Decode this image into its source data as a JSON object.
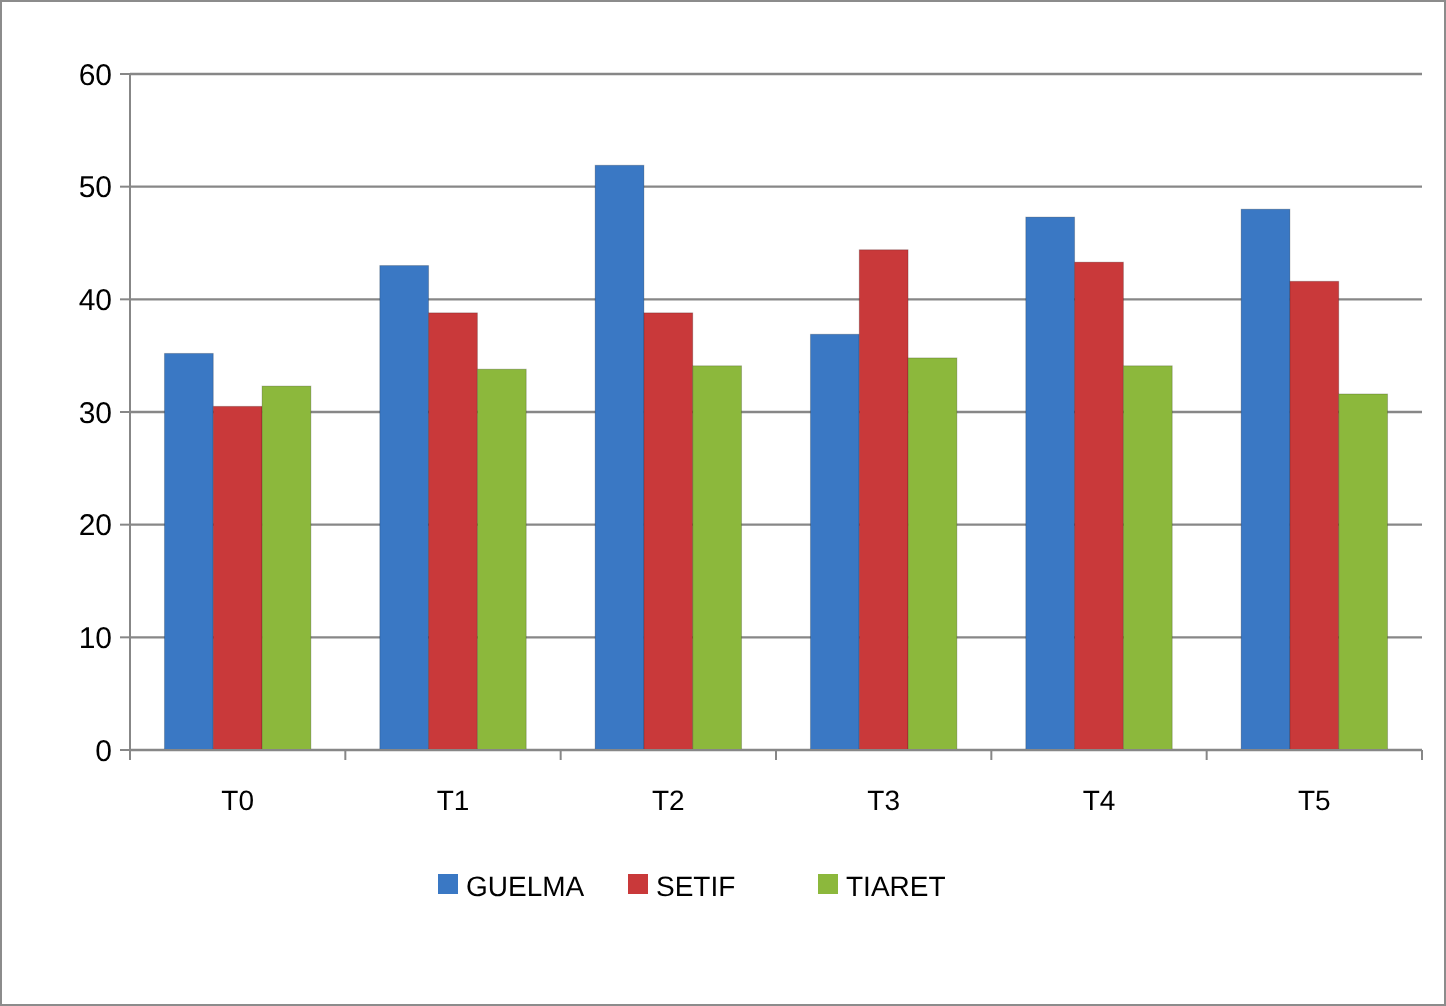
{
  "chart_data": {
    "type": "bar",
    "categories": [
      "T0",
      "T1",
      "T2",
      "T3",
      "T4",
      "T5"
    ],
    "series": [
      {
        "name": "GUELMA",
        "color": "#3a78c4",
        "values": [
          35.2,
          43,
          51.9,
          36.9,
          47.3,
          48
        ]
      },
      {
        "name": "SETIF",
        "color": "#c9393a",
        "values": [
          30.5,
          38.8,
          38.8,
          44.4,
          43.3,
          41.6
        ]
      },
      {
        "name": "TIARET",
        "color": "#8cb83c",
        "values": [
          32.3,
          33.8,
          34.1,
          34.8,
          34.1,
          31.6
        ]
      }
    ],
    "ylim": [
      0,
      60
    ],
    "yticks": [
      0,
      10,
      20,
      30,
      40,
      50,
      60
    ],
    "grid": "y",
    "legend": "bottom"
  }
}
